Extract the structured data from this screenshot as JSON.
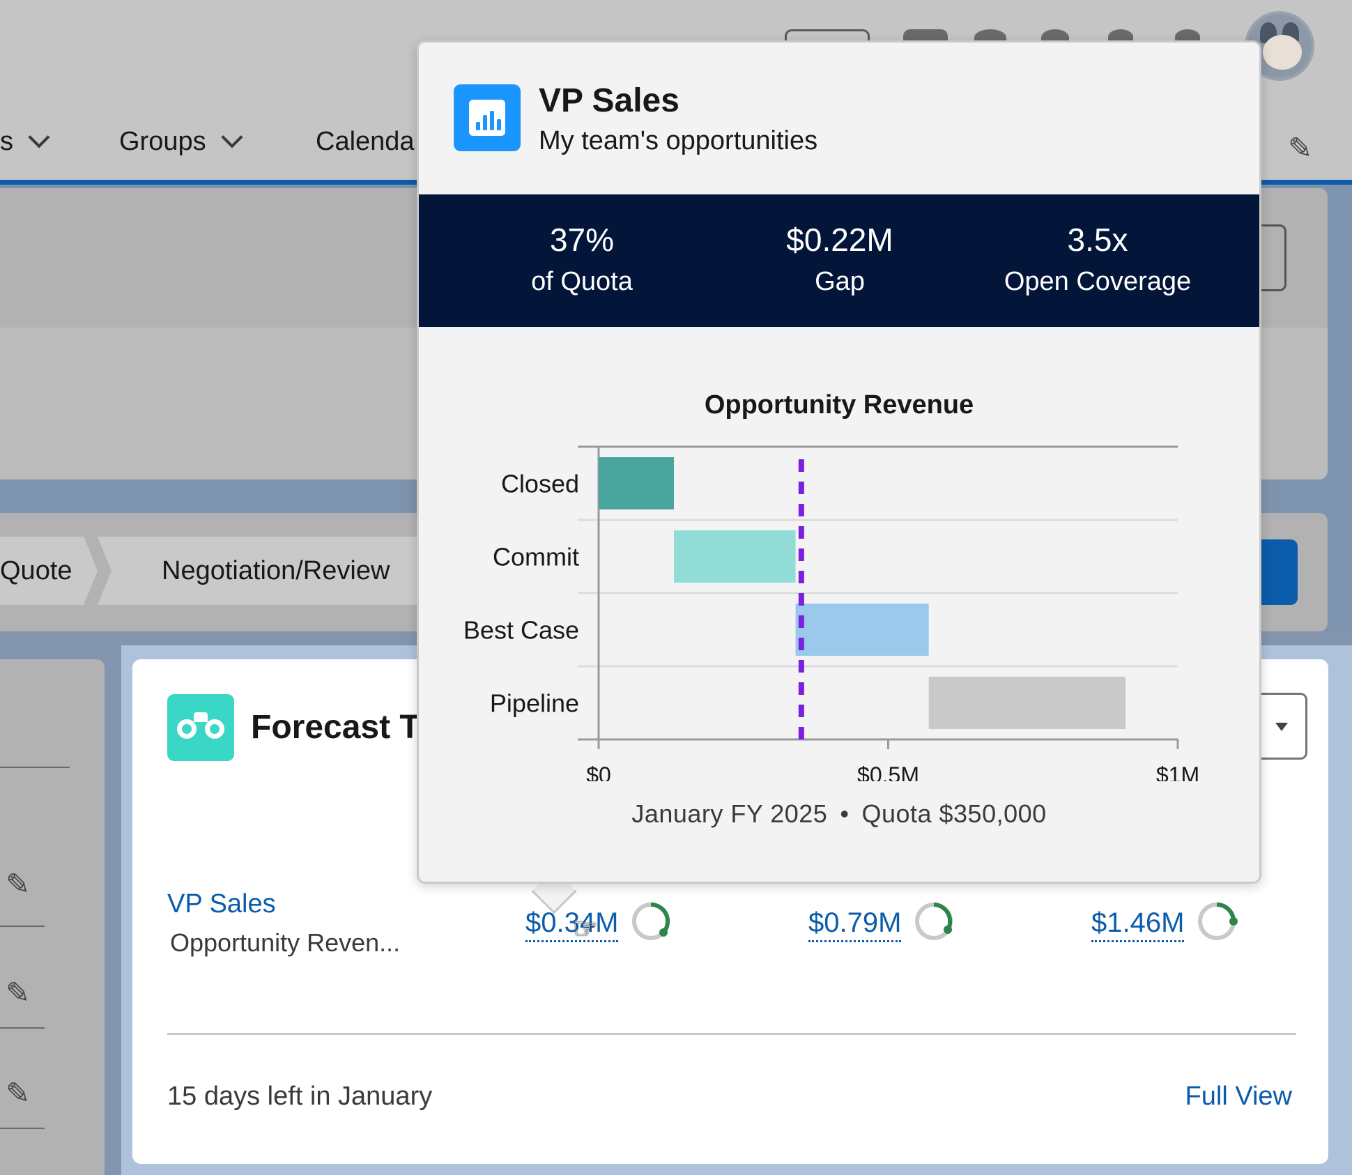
{
  "nav": {
    "items": [
      {
        "label": "s"
      },
      {
        "label": "Groups"
      },
      {
        "label": "Calenda"
      }
    ]
  },
  "path": {
    "steps": [
      {
        "label": "Quote"
      },
      {
        "label": "Negotiation/Review"
      }
    ]
  },
  "forecast": {
    "title": "Forecast T",
    "row_name": "VP Sales",
    "row_sub": "Opportunity Reven...",
    "amounts": [
      "$0.34M",
      "$0.79M",
      "$1.46M"
    ],
    "days_left": "15 days left in January",
    "full_view": "Full View"
  },
  "popover": {
    "title": "VP Sales",
    "subtitle": "My team's opportunities",
    "stats": [
      {
        "value": "37%",
        "label": "of Quota"
      },
      {
        "value": "$0.22M",
        "label": "Gap"
      },
      {
        "value": "3.5x",
        "label": "Open Coverage"
      }
    ],
    "footer_period": "January FY 2025",
    "footer_dot": "•",
    "footer_quota": "Quota $350,000"
  },
  "colors": {
    "accent": "#0b5cab",
    "closed": "#4ba59f",
    "commit": "#92dcd7",
    "best_case": "#9ac9ec",
    "pipeline": "#c9c9c9",
    "quota_line": "#7b1fe0",
    "stats_bg": "#03163a"
  },
  "chart_data": {
    "type": "bar",
    "orientation": "horizontal",
    "stacked": "waterfall",
    "title": "Opportunity Revenue",
    "categories": [
      "Closed",
      "Commit",
      "Best Case",
      "Pipeline"
    ],
    "series": [
      {
        "values": [
          {
            "start": 0,
            "end": 0.13
          },
          {
            "start": 0.13,
            "end": 0.34
          },
          {
            "start": 0.34,
            "end": 0.57
          },
          {
            "start": 0.57,
            "end": 0.91
          }
        ]
      }
    ],
    "reference_line": {
      "value": 0.35
    },
    "x_ticks": [
      {
        "value": 0,
        "label": "$0"
      },
      {
        "value": 0.5,
        "label": "$0.5M"
      },
      {
        "value": 1,
        "label": "$1M"
      }
    ],
    "xlim": [
      0,
      1
    ],
    "grid": true
  }
}
